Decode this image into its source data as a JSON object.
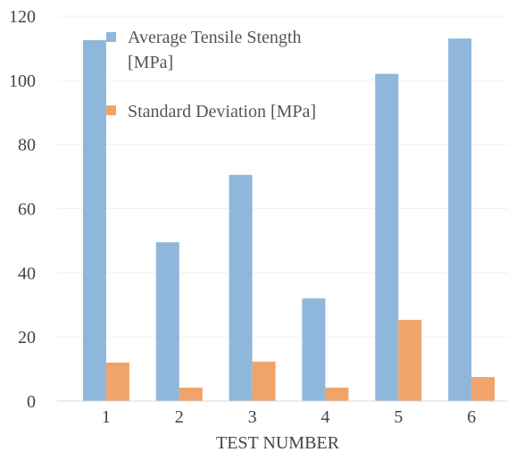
{
  "chart_data": {
    "type": "bar",
    "categories": [
      "1",
      "2",
      "3",
      "4",
      "5",
      "6"
    ],
    "series": [
      {
        "name": "Average Tensile Stength [MPa]",
        "values": [
          112.5,
          49.5,
          70.5,
          32,
          102,
          113
        ],
        "color": "#8fb7dc"
      },
      {
        "name": "Standard Deviation [MPa]",
        "values": [
          12,
          4.2,
          12.3,
          4.2,
          25.3,
          7.5
        ],
        "color": "#f0a46c"
      }
    ],
    "xlabel": "TEST NUMBER",
    "ylabel": "",
    "ylim": [
      0,
      120
    ],
    "yticks": [
      0,
      20,
      40,
      60,
      80,
      100,
      120
    ],
    "grid": true,
    "legend_position": "top-left"
  },
  "legend": {
    "item1_line1": "Average Tensile Stength",
    "item1_line2": "[MPa]",
    "item2": "Standard Deviation [MPa]"
  }
}
